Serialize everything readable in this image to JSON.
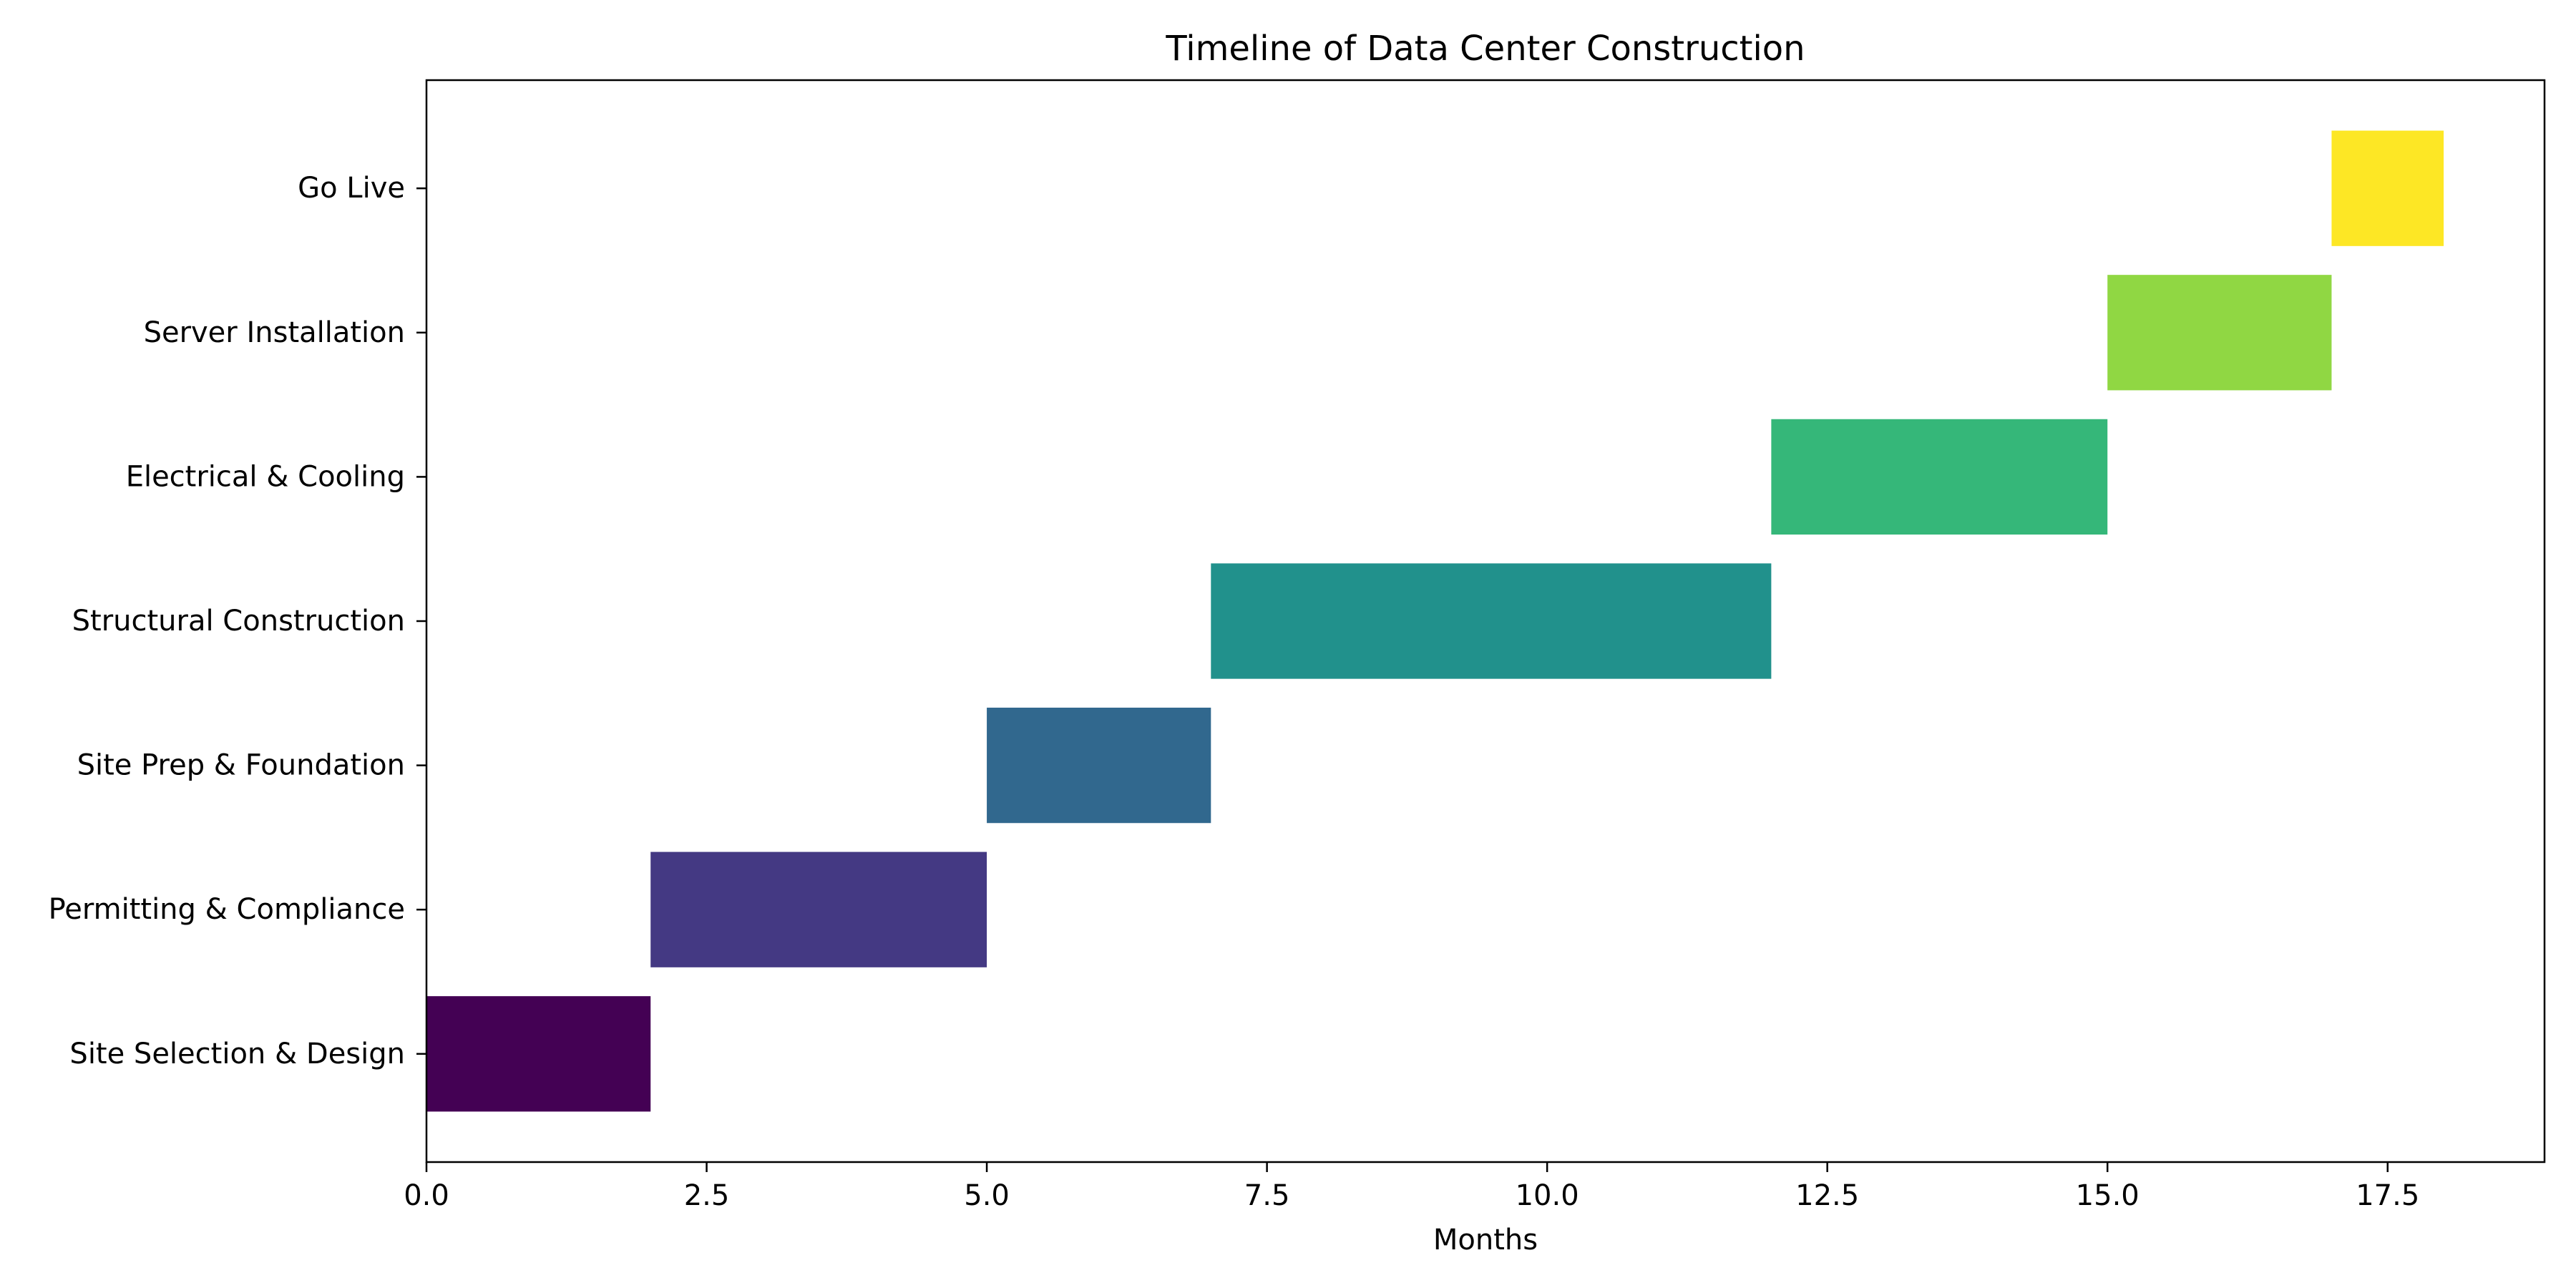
{
  "chart_data": {
    "type": "bar",
    "orientation": "horizontal",
    "title": "Timeline of Data Center Construction",
    "xlabel": "Months",
    "ylabel": "",
    "xlim": [
      0,
      18.9
    ],
    "xticks": [
      0.0,
      2.5,
      5.0,
      7.5,
      10.0,
      12.5,
      15.0,
      17.5
    ],
    "xtick_labels": [
      "0.0",
      "2.5",
      "5.0",
      "7.5",
      "10.0",
      "12.5",
      "15.0",
      "17.5"
    ],
    "grid": false,
    "legend": "none",
    "tasks": [
      {
        "label": "Site Selection & Design",
        "start": 0,
        "duration": 2,
        "color": "#440154"
      },
      {
        "label": "Permitting & Compliance",
        "start": 2,
        "duration": 3,
        "color": "#443983"
      },
      {
        "label": "Site Prep & Foundation",
        "start": 5,
        "duration": 2,
        "color": "#31688e"
      },
      {
        "label": "Structural Construction",
        "start": 7,
        "duration": 5,
        "color": "#21918c"
      },
      {
        "label": "Electrical & Cooling",
        "start": 12,
        "duration": 3,
        "color": "#35b779"
      },
      {
        "label": "Server Installation",
        "start": 15,
        "duration": 2,
        "color": "#90d743"
      },
      {
        "label": "Go Live",
        "start": 17,
        "duration": 1,
        "color": "#fde725"
      }
    ]
  }
}
